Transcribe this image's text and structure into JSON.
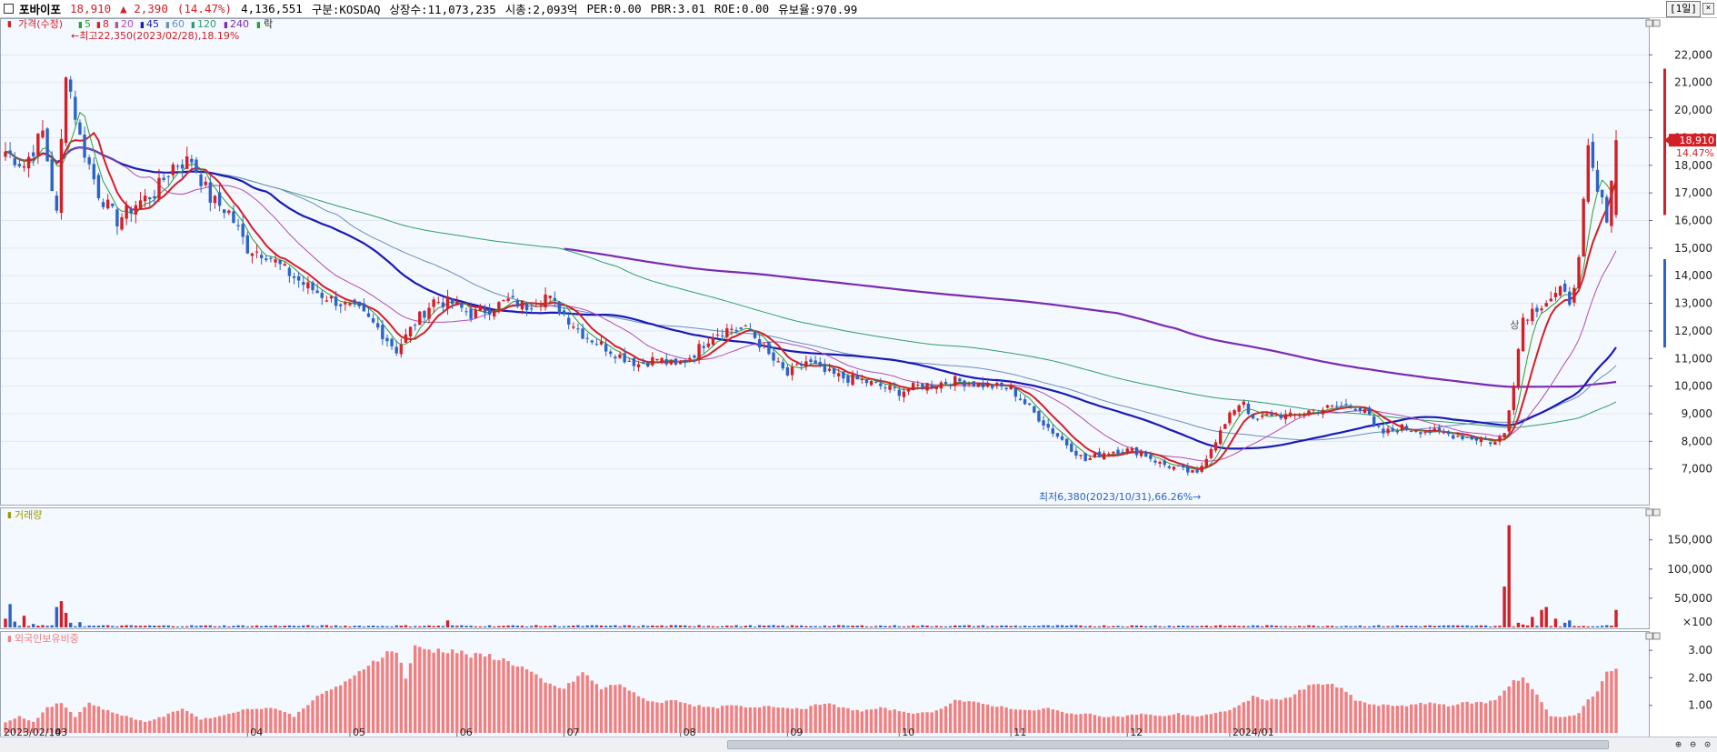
{
  "header": {
    "name": "포바이포",
    "price": "18,910",
    "change": "▲ 2,390",
    "change_pct": "(14.47%)",
    "volume": "4,136,551",
    "market": "구분:KOSDAQ",
    "shares": "상장수:11,073,235",
    "mcap": "시총:2,093억",
    "per": "PER:0.00",
    "pbr": "PBR:3.01",
    "roe": "ROE:0.00",
    "float": "유보율:970.99",
    "period": "[1일]",
    "close": "×"
  },
  "chart_data": {
    "type": "candlestick",
    "ylim": [
      6200,
      23000
    ],
    "yticks": [
      7000,
      8000,
      9000,
      10000,
      11000,
      12000,
      13000,
      14000,
      15000,
      16000,
      17000,
      18000,
      19000,
      20000,
      21000,
      22000
    ],
    "ytick_labels": [
      "7,000",
      "8,000",
      "9,000",
      "10,000",
      "11,000",
      "12,000",
      "13,000",
      "14,000",
      "15,000",
      "16,000",
      "17,000",
      "18,000",
      "19,000",
      "20,000",
      "21,000",
      "22,000"
    ],
    "legend": {
      "label": "가격(수정)",
      "ma": [
        "5",
        "8",
        "20",
        "45",
        "60",
        "120",
        "240"
      ],
      "tail": "락"
    },
    "colors": {
      "up": "#d31f26",
      "down": "#2b64c6",
      "ma5": "#2f9e2f",
      "ma8": "#d31f26",
      "ma20": "#b04fb0",
      "ma45": "#1a1ab4",
      "ma60": "#6a8fb8",
      "ma120": "#2f9e6a",
      "ma240": "#7a2bb0"
    },
    "annotations": {
      "high": "최고22,350(2023/02/28),18.19%",
      "low": "최저6,380(2023/10/31),66.26%",
      "marker": "상"
    },
    "last_price_tag": "18,910",
    "last_pct_tag": "14.47%",
    "xaxis": {
      "start": "2023/02/14",
      "months": [
        "03",
        "04",
        "05",
        "06",
        "07",
        "08",
        "09",
        "10",
        "11",
        "12",
        "2024/01"
      ]
    },
    "anchors": [
      [
        0,
        18500
      ],
      [
        4,
        18000
      ],
      [
        8,
        19200
      ],
      [
        11,
        16200
      ],
      [
        13,
        21500
      ],
      [
        16,
        19000
      ],
      [
        20,
        17000
      ],
      [
        24,
        16000
      ],
      [
        28,
        16600
      ],
      [
        32,
        17000
      ],
      [
        36,
        18000
      ],
      [
        40,
        18200
      ],
      [
        44,
        16800
      ],
      [
        48,
        16300
      ],
      [
        52,
        15000
      ],
      [
        56,
        14800
      ],
      [
        60,
        14200
      ],
      [
        64,
        13700
      ],
      [
        68,
        13300
      ],
      [
        72,
        13000
      ],
      [
        76,
        12700
      ],
      [
        80,
        12100
      ],
      [
        84,
        11300
      ],
      [
        88,
        12300
      ],
      [
        92,
        13100
      ],
      [
        96,
        13000
      ],
      [
        100,
        12600
      ],
      [
        104,
        12800
      ],
      [
        108,
        13100
      ],
      [
        112,
        12900
      ],
      [
        116,
        13300
      ],
      [
        120,
        12600
      ],
      [
        124,
        11900
      ],
      [
        128,
        11500
      ],
      [
        132,
        11100
      ],
      [
        136,
        10800
      ],
      [
        140,
        11000
      ],
      [
        144,
        10700
      ],
      [
        148,
        11200
      ],
      [
        152,
        11900
      ],
      [
        156,
        12100
      ],
      [
        160,
        12000
      ],
      [
        164,
        11100
      ],
      [
        168,
        10400
      ],
      [
        172,
        10900
      ],
      [
        176,
        10500
      ],
      [
        180,
        10300
      ],
      [
        184,
        10200
      ],
      [
        188,
        10000
      ],
      [
        192,
        9800
      ],
      [
        196,
        10000
      ],
      [
        200,
        10100
      ],
      [
        204,
        10200
      ],
      [
        208,
        10100
      ],
      [
        212,
        10000
      ],
      [
        216,
        9900
      ],
      [
        220,
        9200
      ],
      [
        224,
        8500
      ],
      [
        228,
        7900
      ],
      [
        232,
        7300
      ],
      [
        236,
        7600
      ],
      [
        240,
        7700
      ],
      [
        244,
        7600
      ],
      [
        248,
        7200
      ],
      [
        252,
        7000
      ],
      [
        256,
        6800
      ],
      [
        259,
        7800
      ],
      [
        262,
        8600
      ],
      [
        264,
        9200
      ],
      [
        266,
        9500
      ],
      [
        268,
        8700
      ],
      [
        272,
        9000
      ],
      [
        276,
        8900
      ],
      [
        280,
        9100
      ],
      [
        284,
        9200
      ],
      [
        288,
        9300
      ],
      [
        292,
        9200
      ],
      [
        294,
        8500
      ],
      [
        296,
        8300
      ],
      [
        300,
        8500
      ],
      [
        304,
        8400
      ],
      [
        308,
        8300
      ],
      [
        312,
        8200
      ],
      [
        316,
        8100
      ],
      [
        320,
        7950
      ],
      [
        322,
        8300
      ],
      [
        324,
        10200
      ],
      [
        326,
        12500
      ],
      [
        330,
        13000
      ],
      [
        334,
        13400
      ],
      [
        336,
        13100
      ],
      [
        338,
        14500
      ],
      [
        340,
        18500
      ],
      [
        342,
        17000
      ],
      [
        344,
        16200
      ],
      [
        346,
        18910
      ]
    ],
    "volume_panel": {
      "label": "거래량",
      "ylim": [
        0,
        190000
      ],
      "yticks": [
        50000,
        100000,
        150000
      ],
      "ytick_labels": [
        "50,000",
        "100,000",
        "150,000"
      ],
      "floor_label": "×100",
      "big_bars": [
        [
          0,
          15000
        ],
        [
          1,
          40000
        ],
        [
          2,
          10000
        ],
        [
          4,
          20000
        ],
        [
          6,
          6000
        ],
        [
          11,
          35000
        ],
        [
          12,
          45000
        ],
        [
          13,
          25000
        ],
        [
          14,
          8000
        ],
        [
          16,
          9000
        ],
        [
          60,
          3000
        ],
        [
          95,
          12000
        ],
        [
          149,
          4000
        ],
        [
          322,
          70000
        ],
        [
          323,
          175000
        ],
        [
          325,
          8000
        ],
        [
          326,
          5000
        ],
        [
          328,
          18000
        ],
        [
          330,
          30000
        ],
        [
          331,
          35000
        ],
        [
          333,
          15000
        ],
        [
          335,
          8000
        ],
        [
          336,
          12000
        ],
        [
          346,
          30000
        ]
      ]
    },
    "foreign_panel": {
      "label": "외국인보유비중",
      "ylim": [
        0,
        3.5
      ],
      "yticks": [
        1,
        2,
        3
      ],
      "ytick_labels": [
        "1.00",
        "2.00",
        "3.00"
      ],
      "anchors": [
        [
          0,
          0.4
        ],
        [
          3,
          0.6
        ],
        [
          6,
          0.4
        ],
        [
          9,
          0.9
        ],
        [
          12,
          1.1
        ],
        [
          15,
          0.6
        ],
        [
          18,
          1.1
        ],
        [
          22,
          0.8
        ],
        [
          26,
          0.6
        ],
        [
          30,
          0.4
        ],
        [
          34,
          0.6
        ],
        [
          38,
          0.9
        ],
        [
          42,
          0.5
        ],
        [
          46,
          0.6
        ],
        [
          50,
          0.8
        ],
        [
          54,
          0.9
        ],
        [
          58,
          0.9
        ],
        [
          62,
          0.6
        ],
        [
          66,
          1.2
        ],
        [
          70,
          1.6
        ],
        [
          74,
          1.9
        ],
        [
          78,
          2.5
        ],
        [
          82,
          2.9
        ],
        [
          84,
          3.0
        ],
        [
          86,
          2.0
        ],
        [
          88,
          3.1
        ],
        [
          92,
          3.0
        ],
        [
          96,
          3.0
        ],
        [
          100,
          2.8
        ],
        [
          104,
          2.8
        ],
        [
          108,
          2.6
        ],
        [
          112,
          2.3
        ],
        [
          116,
          1.8
        ],
        [
          120,
          1.6
        ],
        [
          124,
          2.2
        ],
        [
          128,
          1.6
        ],
        [
          132,
          1.8
        ],
        [
          136,
          1.3
        ],
        [
          140,
          1.1
        ],
        [
          144,
          1.2
        ],
        [
          148,
          1.0
        ],
        [
          152,
          0.9
        ],
        [
          156,
          1.0
        ],
        [
          160,
          0.9
        ],
        [
          164,
          1.0
        ],
        [
          168,
          0.9
        ],
        [
          172,
          0.9
        ],
        [
          176,
          1.1
        ],
        [
          180,
          0.9
        ],
        [
          184,
          0.8
        ],
        [
          188,
          0.9
        ],
        [
          192,
          0.8
        ],
        [
          196,
          0.7
        ],
        [
          200,
          0.8
        ],
        [
          204,
          1.2
        ],
        [
          208,
          1.1
        ],
        [
          212,
          1.0
        ],
        [
          216,
          0.9
        ],
        [
          220,
          0.8
        ],
        [
          224,
          0.9
        ],
        [
          228,
          0.7
        ],
        [
          232,
          0.7
        ],
        [
          236,
          0.6
        ],
        [
          240,
          0.6
        ],
        [
          244,
          0.7
        ],
        [
          248,
          0.6
        ],
        [
          252,
          0.7
        ],
        [
          256,
          0.6
        ],
        [
          260,
          0.7
        ],
        [
          264,
          0.9
        ],
        [
          268,
          1.3
        ],
        [
          272,
          1.2
        ],
        [
          276,
          1.3
        ],
        [
          280,
          1.7
        ],
        [
          284,
          1.8
        ],
        [
          288,
          1.5
        ],
        [
          290,
          1.2
        ],
        [
          294,
          1.0
        ],
        [
          298,
          1.0
        ],
        [
          302,
          1.0
        ],
        [
          306,
          1.1
        ],
        [
          310,
          1.0
        ],
        [
          314,
          1.1
        ],
        [
          318,
          1.1
        ],
        [
          320,
          1.2
        ],
        [
          324,
          1.9
        ],
        [
          326,
          2.0
        ],
        [
          328,
          1.6
        ],
        [
          332,
          0.6
        ],
        [
          336,
          0.6
        ],
        [
          338,
          0.7
        ],
        [
          340,
          1.2
        ],
        [
          342,
          1.5
        ],
        [
          344,
          2.2
        ],
        [
          346,
          2.3
        ]
      ]
    }
  }
}
